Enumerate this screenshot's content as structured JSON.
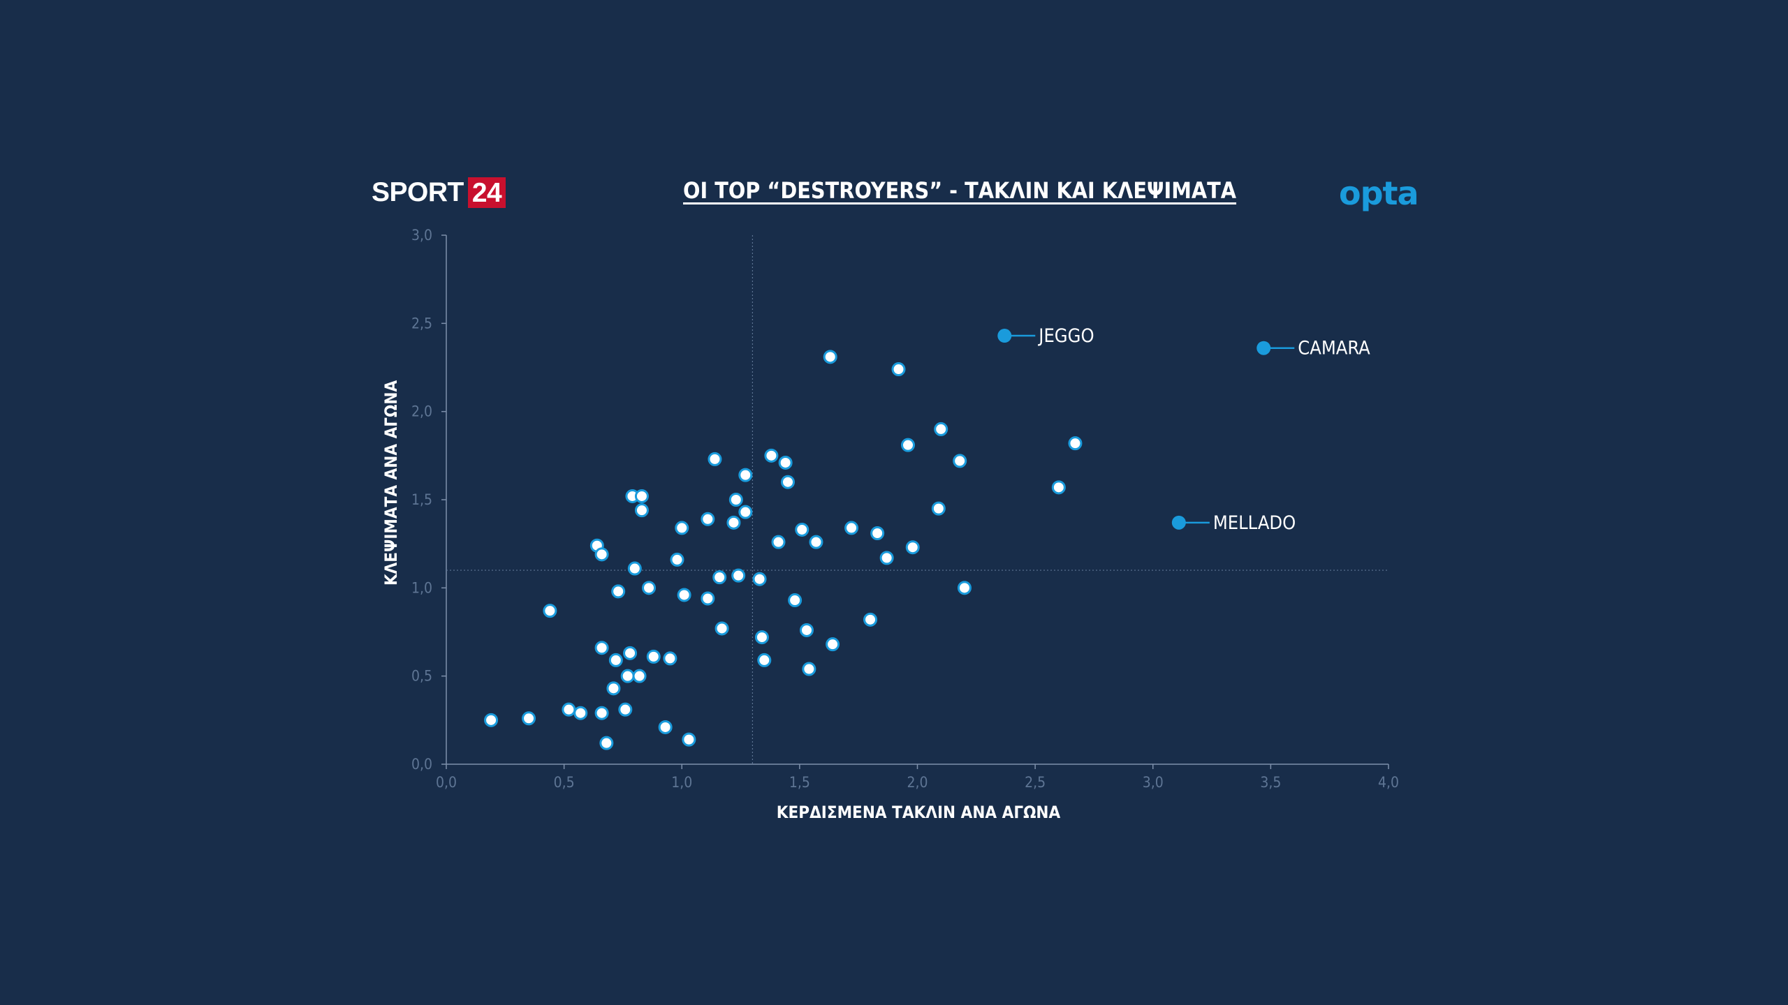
{
  "brand": {
    "sport_text": "SPORT",
    "sport_num": "24",
    "opta": "opta",
    "accent": "#1a9bdc",
    "brand_red": "#c8102e"
  },
  "chart_data": {
    "type": "scatter",
    "title": "ΟΙ TOP “DESTROYERS” - ΤΑΚΛΙΝ ΚΑΙ ΚΛΕΨΙΜΑΤΑ",
    "xlabel": "ΚΕΡΔΙΣΜΕΝΑ ΤΑΚΛΙΝ ΑΝΑ ΑΓΩΝΑ",
    "ylabel": "ΚΛΕΨΙΜΑΤΑ ΑΝΑ ΑΓΩΝΑ",
    "xlim": [
      0,
      4
    ],
    "ylim": [
      0,
      3
    ],
    "xticks": [
      "0,0",
      "0,5",
      "1,0",
      "1,5",
      "2,0",
      "2,5",
      "3,0",
      "3,5",
      "4,0"
    ],
    "yticks": [
      "0,0",
      "0,5",
      "1,0",
      "1,5",
      "2,0",
      "2,5",
      "3,0"
    ],
    "reference_lines": {
      "x": 1.3,
      "y": 1.1
    },
    "grid": false,
    "point_color": "#ffffff",
    "point_stroke": "#1a9bdc",
    "points": [
      [
        0.19,
        0.25
      ],
      [
        0.35,
        0.26
      ],
      [
        0.44,
        0.87
      ],
      [
        0.52,
        0.31
      ],
      [
        0.57,
        0.29
      ],
      [
        0.64,
        1.24
      ],
      [
        0.66,
        1.19
      ],
      [
        0.66,
        0.66
      ],
      [
        0.66,
        0.29
      ],
      [
        0.68,
        0.12
      ],
      [
        0.71,
        0.43
      ],
      [
        0.72,
        0.59
      ],
      [
        0.73,
        0.98
      ],
      [
        0.76,
        0.31
      ],
      [
        0.77,
        0.5
      ],
      [
        0.78,
        0.63
      ],
      [
        0.79,
        1.52
      ],
      [
        0.8,
        1.11
      ],
      [
        0.82,
        0.5
      ],
      [
        0.83,
        1.52
      ],
      [
        0.83,
        1.44
      ],
      [
        0.86,
        1.0
      ],
      [
        0.88,
        0.61
      ],
      [
        0.93,
        0.21
      ],
      [
        0.95,
        0.6
      ],
      [
        0.98,
        1.16
      ],
      [
        1.0,
        1.34
      ],
      [
        1.01,
        0.96
      ],
      [
        1.03,
        0.14
      ],
      [
        1.11,
        0.94
      ],
      [
        1.11,
        1.39
      ],
      [
        1.14,
        1.73
      ],
      [
        1.16,
        1.06
      ],
      [
        1.17,
        0.77
      ],
      [
        1.22,
        1.37
      ],
      [
        1.23,
        1.5
      ],
      [
        1.24,
        1.07
      ],
      [
        1.27,
        1.64
      ],
      [
        1.27,
        1.43
      ],
      [
        1.33,
        1.05
      ],
      [
        1.34,
        0.72
      ],
      [
        1.35,
        0.59
      ],
      [
        1.38,
        1.75
      ],
      [
        1.41,
        1.26
      ],
      [
        1.44,
        1.71
      ],
      [
        1.45,
        1.6
      ],
      [
        1.48,
        0.93
      ],
      [
        1.51,
        1.33
      ],
      [
        1.53,
        0.76
      ],
      [
        1.54,
        0.54
      ],
      [
        1.57,
        1.26
      ],
      [
        1.63,
        2.31
      ],
      [
        1.64,
        0.68
      ],
      [
        1.72,
        1.34
      ],
      [
        1.8,
        0.82
      ],
      [
        1.83,
        1.31
      ],
      [
        1.87,
        1.17
      ],
      [
        1.92,
        2.24
      ],
      [
        1.96,
        1.81
      ],
      [
        1.98,
        1.23
      ],
      [
        2.09,
        1.45
      ],
      [
        2.1,
        1.9
      ],
      [
        2.18,
        1.72
      ],
      [
        2.2,
        1.0
      ],
      [
        2.6,
        1.57
      ],
      [
        2.67,
        1.82
      ]
    ],
    "highlighted": [
      {
        "name": "JEGGO",
        "x": 2.37,
        "y": 2.43
      },
      {
        "name": "CAMARA",
        "x": 3.47,
        "y": 2.36
      },
      {
        "name": "MELLADO",
        "x": 3.11,
        "y": 1.37
      }
    ]
  }
}
